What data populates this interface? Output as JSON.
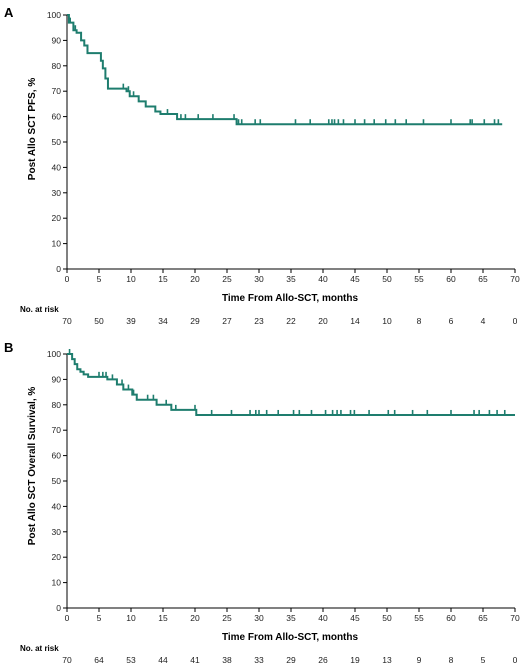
{
  "chart_data": [
    {
      "type": "line",
      "panel_label": "A",
      "xlabel": "Time From Allo-SCT, months",
      "ylabel": "Post Allo SCT PFS, %",
      "xlim": [
        0,
        70
      ],
      "ylim": [
        0,
        100
      ],
      "x_ticks": [
        0,
        5,
        10,
        15,
        20,
        25,
        30,
        35,
        40,
        45,
        50,
        55,
        60,
        65,
        70
      ],
      "y_ticks": [
        0,
        10,
        20,
        30,
        40,
        50,
        60,
        70,
        80,
        90,
        100
      ],
      "grid": false,
      "color": "#1e7d6e",
      "series": [
        {
          "x": [
            0,
            0.3,
            1,
            1.5,
            2.2,
            2.7,
            3.2,
            5.3,
            5.6,
            6,
            6.4,
            7,
            9.3,
            9.8,
            10.3,
            11.2,
            12.3,
            13.8,
            14.6,
            17.2,
            26.5,
            68
          ],
          "y": [
            100,
            97,
            94,
            93,
            90,
            88,
            85,
            82,
            79,
            75,
            71,
            71,
            70,
            68,
            68,
            66,
            64,
            62,
            61,
            59,
            57,
            57
          ]
        }
      ],
      "censor_x": [
        0.5,
        1.3,
        8.8,
        9.6,
        10.4,
        15.7,
        17.8,
        18.5,
        20.5,
        22.8,
        26.1,
        26.8,
        27.3,
        29.4,
        30.2,
        35.7,
        38.0,
        40.9,
        41.4,
        41.8,
        42.4,
        43.2,
        45.0,
        46.5,
        48.0,
        49.8,
        51.3,
        53.0,
        55.7,
        60.0,
        63.0,
        63.3,
        65.2,
        66.8,
        67.4
      ],
      "risk_table": {
        "title": "No. at risk",
        "x": [
          0,
          5,
          10,
          15,
          20,
          25,
          30,
          35,
          40,
          45,
          50,
          55,
          60,
          65,
          70
        ],
        "counts": [
          "70",
          "50",
          "39",
          "34",
          "29",
          "27",
          "23",
          "22",
          "20",
          "14",
          "10",
          "8",
          "6",
          "4",
          "0"
        ]
      }
    },
    {
      "type": "line",
      "panel_label": "B",
      "xlabel": "Time From Allo-SCT, months",
      "ylabel": "Post Allo SCT Overall Survival, %",
      "xlim": [
        0,
        70
      ],
      "ylim": [
        0,
        100
      ],
      "x_ticks": [
        0,
        5,
        10,
        15,
        20,
        25,
        30,
        35,
        40,
        45,
        50,
        55,
        60,
        65,
        70
      ],
      "y_ticks": [
        0,
        10,
        20,
        30,
        40,
        50,
        60,
        70,
        80,
        90,
        100
      ],
      "grid": false,
      "color": "#1e7d6e",
      "series": [
        {
          "x": [
            0,
            0.8,
            1.2,
            1.6,
            2.1,
            2.6,
            3.3,
            6.3,
            7.8,
            8.8,
            10.2,
            10.9,
            14.0,
            16.3,
            20.2,
            70
          ],
          "y": [
            100,
            98,
            96,
            94,
            93,
            92,
            91,
            90,
            88,
            86,
            84,
            82,
            80,
            78,
            76,
            76
          ]
        }
      ],
      "censor_x": [
        0.4,
        5.0,
        5.6,
        6.1,
        7.1,
        8.6,
        9.6,
        10.4,
        12.6,
        13.5,
        15.5,
        17.0,
        20.0,
        22.6,
        25.7,
        28.6,
        29.5,
        30.0,
        31.2,
        33.0,
        35.4,
        36.3,
        38.2,
        40.4,
        41.5,
        42.2,
        42.8,
        44.3,
        44.9,
        47.2,
        50.2,
        51.2,
        54.0,
        56.3,
        60.0,
        63.6,
        64.4,
        66.0,
        67.2,
        68.4
      ],
      "risk_table": {
        "title": "No. at risk",
        "x": [
          0,
          5,
          10,
          15,
          20,
          25,
          30,
          35,
          40,
          45,
          50,
          55,
          60,
          65,
          70
        ],
        "counts": [
          "70",
          "64",
          "53",
          "44",
          "41",
          "38",
          "33",
          "29",
          "26",
          "19",
          "13",
          "9",
          "8",
          "5",
          "0"
        ]
      }
    }
  ]
}
